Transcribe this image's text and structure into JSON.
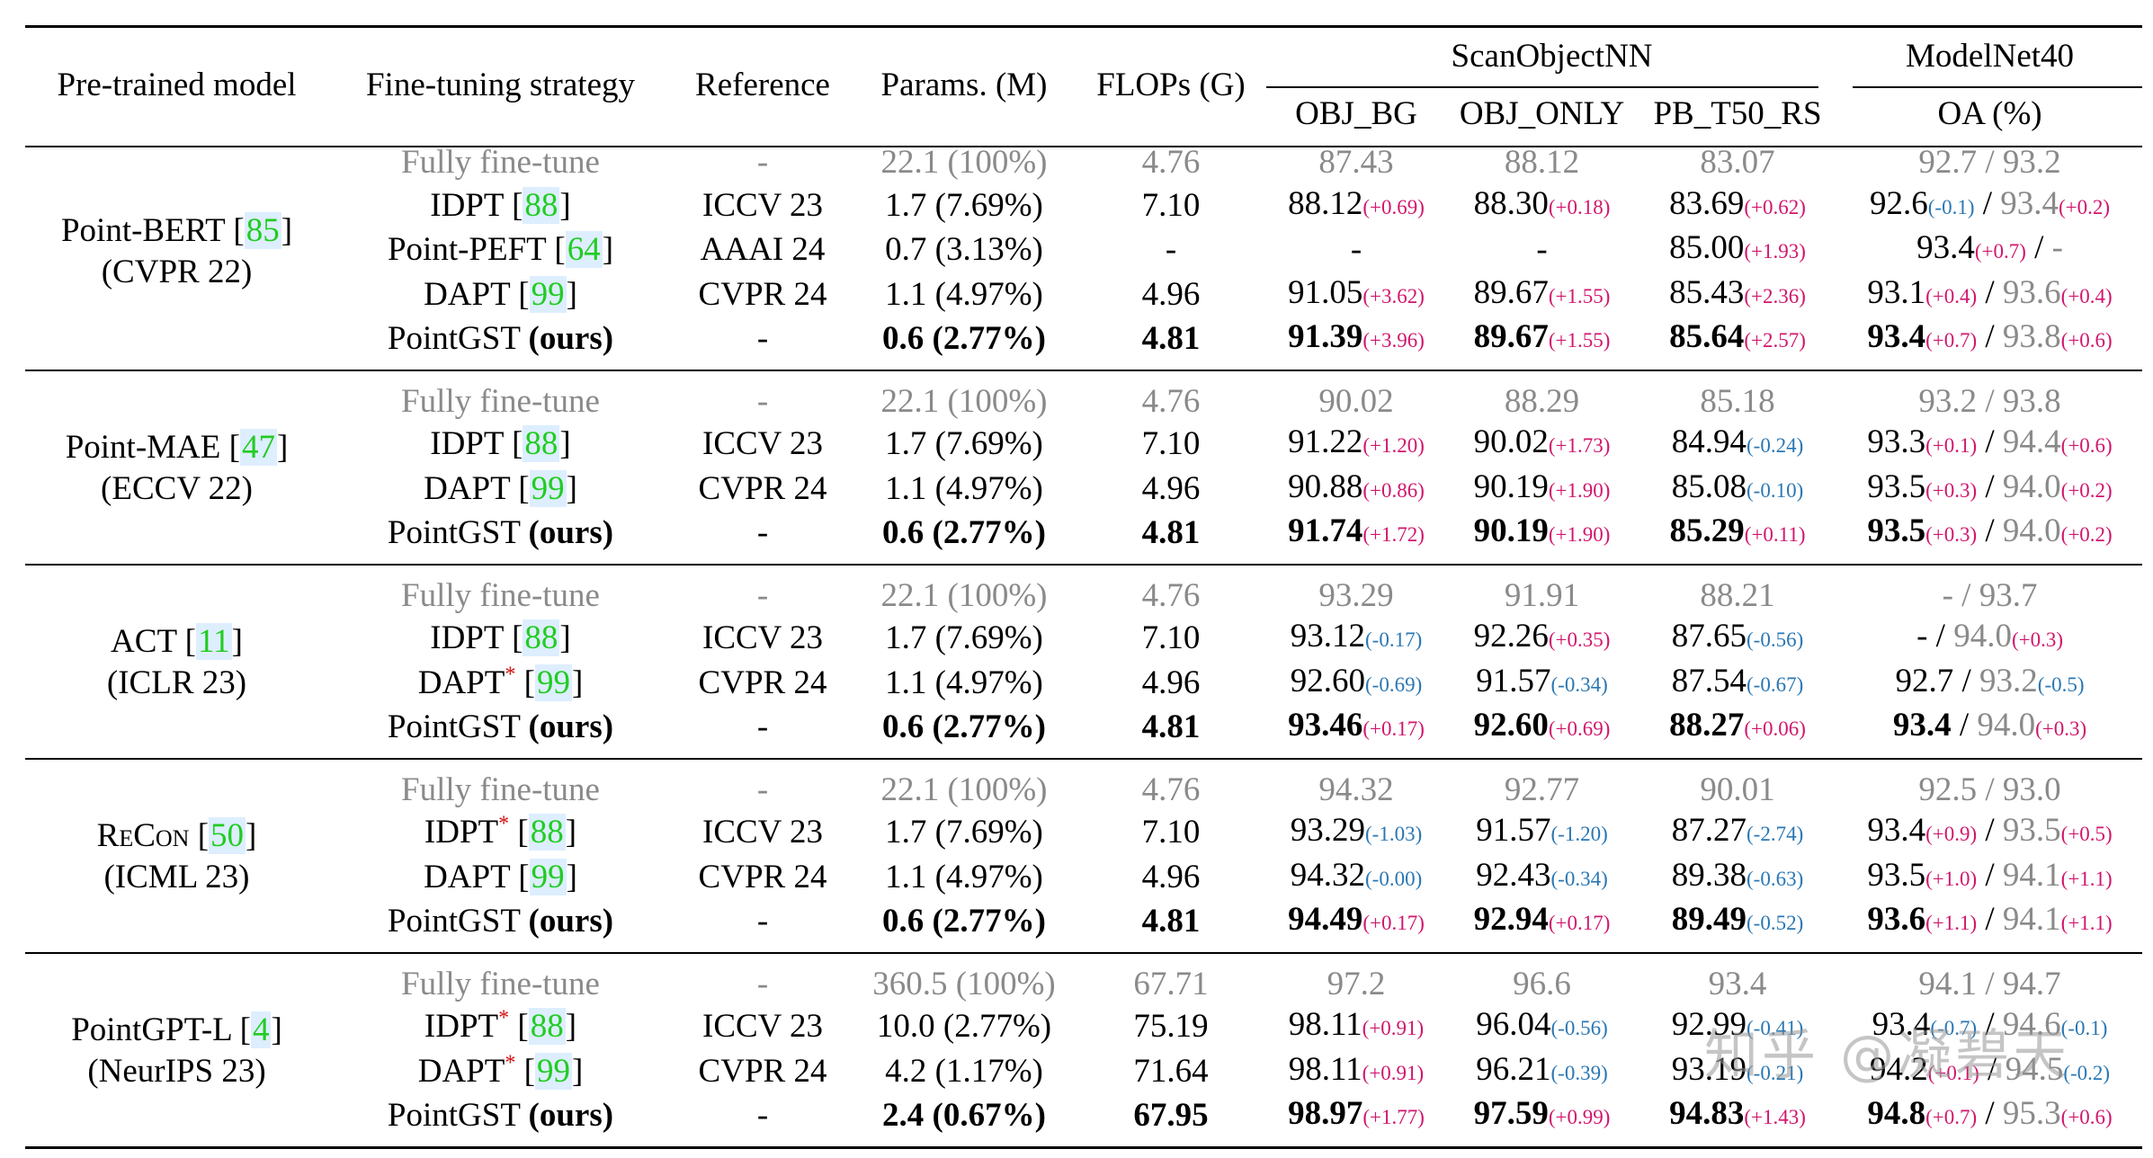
{
  "header": {
    "pretrained": "Pre-trained model",
    "strategy": "Fine-tuning strategy",
    "reference": "Reference",
    "params": "Params. (M)",
    "flops": "FLOPs (G)",
    "scan": "ScanObjectNN",
    "modelnet": "ModelNet40",
    "obj_bg": "OBJ_BG",
    "obj_only": "OBJ_ONLY",
    "pb": "PB_T50_RS",
    "oa": "OA (%)"
  },
  "groups": [
    {
      "model": "Point-BERT",
      "ref": "85",
      "venue": "(CVPR 22)",
      "rows": [
        {
          "strategy": "Fully fine-tune",
          "reference": "-",
          "params": "22.1 (100%)",
          "flops": "4.76",
          "bg": "87.43",
          "only": "88.12",
          "pb": "83.07",
          "oa1": "92.7",
          "oa2": "93.2",
          "baseline": true
        },
        {
          "strategy": "IDPT",
          "sref": "88",
          "reference": "ICCV 23",
          "params": "1.7 (7.69%)",
          "flops": "7.10",
          "bg": "88.12",
          "bgd": "(+0.69)",
          "only": "88.30",
          "onlyd": "(+0.18)",
          "pb": "83.69",
          "pbd": "(+0.62)",
          "oa1": "92.6",
          "oa1d": "(-0.1)",
          "oa2": "93.4",
          "oa2d": "(+0.2)"
        },
        {
          "strategy": "Point-PEFT",
          "sref": "64",
          "reference": "AAAI 24",
          "params": "0.7 (3.13%)",
          "flops": "-",
          "bg": "-",
          "only": "-",
          "pb": "85.00",
          "pbd": "(+1.93)",
          "oa1": "93.4",
          "oa1d": "(+0.7)",
          "oa2": "-"
        },
        {
          "strategy": "DAPT",
          "sref": "99",
          "reference": "CVPR 24",
          "params": "1.1 (4.97%)",
          "flops": "4.96",
          "bg": "91.05",
          "bgd": "(+3.62)",
          "only": "89.67",
          "onlyd": "(+1.55)",
          "pb": "85.43",
          "pbd": "(+2.36)",
          "oa1": "93.1",
          "oa1d": "(+0.4)",
          "oa2": "93.6",
          "oa2d": "(+0.4)"
        },
        {
          "strategy": "PointGST",
          "ours": "(ours)",
          "reference": "-",
          "params": "0.6 (2.77%)",
          "flops": "4.81",
          "bg": "91.39",
          "bgd": "(+3.96)",
          "only": "89.67",
          "onlyd": "(+1.55)",
          "pb": "85.64",
          "pbd": "(+2.57)",
          "oa1": "93.4",
          "oa1d": "(+0.7)",
          "oa2": "93.8",
          "oa2d": "(+0.6)",
          "best": true
        }
      ]
    },
    {
      "model": "Point-MAE",
      "ref": "47",
      "venue": "(ECCV 22)",
      "rows": [
        {
          "strategy": "Fully fine-tune",
          "reference": "-",
          "params": "22.1 (100%)",
          "flops": "4.76",
          "bg": "90.02",
          "only": "88.29",
          "pb": "85.18",
          "oa1": "93.2",
          "oa2": "93.8",
          "baseline": true
        },
        {
          "strategy": "IDPT",
          "sref": "88",
          "reference": "ICCV 23",
          "params": "1.7 (7.69%)",
          "flops": "7.10",
          "bg": "91.22",
          "bgd": "(+1.20)",
          "only": "90.02",
          "onlyd": "(+1.73)",
          "pb": "84.94",
          "pbd": "(-0.24)",
          "oa1": "93.3",
          "oa1d": "(+0.1)",
          "oa2": "94.4",
          "oa2d": "(+0.6)"
        },
        {
          "strategy": "DAPT",
          "sref": "99",
          "reference": "CVPR 24",
          "params": "1.1 (4.97%)",
          "flops": "4.96",
          "bg": "90.88",
          "bgd": "(+0.86)",
          "only": "90.19",
          "onlyd": "(+1.90)",
          "pb": "85.08",
          "pbd": "(-0.10)",
          "oa1": "93.5",
          "oa1d": "(+0.3)",
          "oa2": "94.0",
          "oa2d": "(+0.2)"
        },
        {
          "strategy": "PointGST",
          "ours": "(ours)",
          "reference": "-",
          "params": "0.6 (2.77%)",
          "flops": "4.81",
          "bg": "91.74",
          "bgd": "(+1.72)",
          "only": "90.19",
          "onlyd": "(+1.90)",
          "pb": "85.29",
          "pbd": "(+0.11)",
          "oa1": "93.5",
          "oa1d": "(+0.3)",
          "oa2": "94.0",
          "oa2d": "(+0.2)",
          "best": true
        }
      ]
    },
    {
      "model": "ACT",
      "ref": "11",
      "venue": "(ICLR 23)",
      "rows": [
        {
          "strategy": "Fully fine-tune",
          "reference": "-",
          "params": "22.1 (100%)",
          "flops": "4.76",
          "bg": "93.29",
          "only": "91.91",
          "pb": "88.21",
          "oa1": "-",
          "oa2": "93.7",
          "baseline": true
        },
        {
          "strategy": "IDPT",
          "sref": "88",
          "reference": "ICCV 23",
          "params": "1.7 (7.69%)",
          "flops": "7.10",
          "bg": "93.12",
          "bgd": "(-0.17)",
          "only": "92.26",
          "onlyd": "(+0.35)",
          "pb": "87.65",
          "pbd": "(-0.56)",
          "oa1": "-",
          "oa2": "94.0",
          "oa2d": "(+0.3)"
        },
        {
          "strategy": "DAPT",
          "star": "*",
          "sref": "99",
          "reference": "CVPR 24",
          "params": "1.1 (4.97%)",
          "flops": "4.96",
          "bg": "92.60",
          "bgd": "(-0.69)",
          "only": "91.57",
          "onlyd": "(-0.34)",
          "pb": "87.54",
          "pbd": "(-0.67)",
          "oa1": "92.7",
          "oa2": "93.2",
          "oa2d": "(-0.5)"
        },
        {
          "strategy": "PointGST",
          "ours": "(ours)",
          "reference": "-",
          "params": "0.6 (2.77%)",
          "flops": "4.81",
          "bg": "93.46",
          "bgd": "(+0.17)",
          "only": "92.60",
          "onlyd": "(+0.69)",
          "pb": "88.27",
          "pbd": "(+0.06)",
          "oa1": "93.4",
          "oa2": "94.0",
          "oa2d": "(+0.3)",
          "best": true
        }
      ]
    },
    {
      "model": "ReCon",
      "ref": "50",
      "venue": "(ICML 23)",
      "rows": [
        {
          "strategy": "Fully fine-tune",
          "reference": "-",
          "params": "22.1 (100%)",
          "flops": "4.76",
          "bg": "94.32",
          "only": "92.77",
          "pb": "90.01",
          "oa1": "92.5",
          "oa2": "93.0",
          "baseline": true
        },
        {
          "strategy": "IDPT",
          "star": "*",
          "sref": "88",
          "reference": "ICCV 23",
          "params": "1.7 (7.69%)",
          "flops": "7.10",
          "bg": "93.29",
          "bgd": "(-1.03)",
          "only": "91.57",
          "onlyd": "(-1.20)",
          "pb": "87.27",
          "pbd": "(-2.74)",
          "oa1": "93.4",
          "oa1d": "(+0.9)",
          "oa2": "93.5",
          "oa2d": "(+0.5)"
        },
        {
          "strategy": "DAPT",
          "sref": "99",
          "reference": "CVPR 24",
          "params": "1.1 (4.97%)",
          "flops": "4.96",
          "bg": "94.32",
          "bgd": "(-0.00)",
          "only": "92.43",
          "onlyd": "(-0.34)",
          "pb": "89.38",
          "pbd": "(-0.63)",
          "oa1": "93.5",
          "oa1d": "(+1.0)",
          "oa2": "94.1",
          "oa2d": "(+1.1)"
        },
        {
          "strategy": "PointGST",
          "ours": "(ours)",
          "reference": "-",
          "params": "0.6 (2.77%)",
          "flops": "4.81",
          "bg": "94.49",
          "bgd": "(+0.17)",
          "only": "92.94",
          "onlyd": "(+0.17)",
          "pb": "89.49",
          "pbd": "(-0.52)",
          "oa1": "93.6",
          "oa1d": "(+1.1)",
          "oa2": "94.1",
          "oa2d": "(+1.1)",
          "best": true
        }
      ]
    },
    {
      "model": "PointGPT-L",
      "ref": "4",
      "venue": "(NeurIPS 23)",
      "rows": [
        {
          "strategy": "Fully fine-tune",
          "reference": "-",
          "params": "360.5 (100%)",
          "flops": "67.71",
          "bg": "97.2",
          "only": "96.6",
          "pb": "93.4",
          "oa1": "94.1",
          "oa2": "94.7",
          "baseline": true
        },
        {
          "strategy": "IDPT",
          "star": "*",
          "sref": "88",
          "reference": "ICCV 23",
          "params": "10.0 (2.77%)",
          "flops": "75.19",
          "bg": "98.11",
          "bgd": "(+0.91)",
          "only": "96.04",
          "onlyd": "(-0.56)",
          "pb": "92.99",
          "pbd": "(-0.41)",
          "oa1": "93.4",
          "oa1d": "(-0.7)",
          "oa2": "94.6",
          "oa2d": "(-0.1)"
        },
        {
          "strategy": "DAPT",
          "star": "*",
          "sref": "99",
          "reference": "CVPR 24",
          "params": "4.2 (1.17%)",
          "flops": "71.64",
          "bg": "98.11",
          "bgd": "(+0.91)",
          "only": "96.21",
          "onlyd": "(-0.39)",
          "pb": "93.19",
          "pbd": "(-0.21)",
          "oa1": "94.2",
          "oa1d": "(+0.1)",
          "oa2": "94.5",
          "oa2d": "(-0.2)"
        },
        {
          "strategy": "PointGST",
          "ours": "(ours)",
          "reference": "-",
          "params": "2.4 (0.67%)",
          "flops": "67.95",
          "bg": "98.97",
          "bgd": "(+1.77)",
          "only": "97.59",
          "onlyd": "(+0.99)",
          "pb": "94.83",
          "pbd": "(+1.43)",
          "oa1": "94.8",
          "oa1d": "(+0.7)",
          "oa2": "95.3",
          "oa2d": "(+0.6)",
          "best": true
        }
      ]
    }
  ],
  "watermark": "知乎 @凝碧天"
}
